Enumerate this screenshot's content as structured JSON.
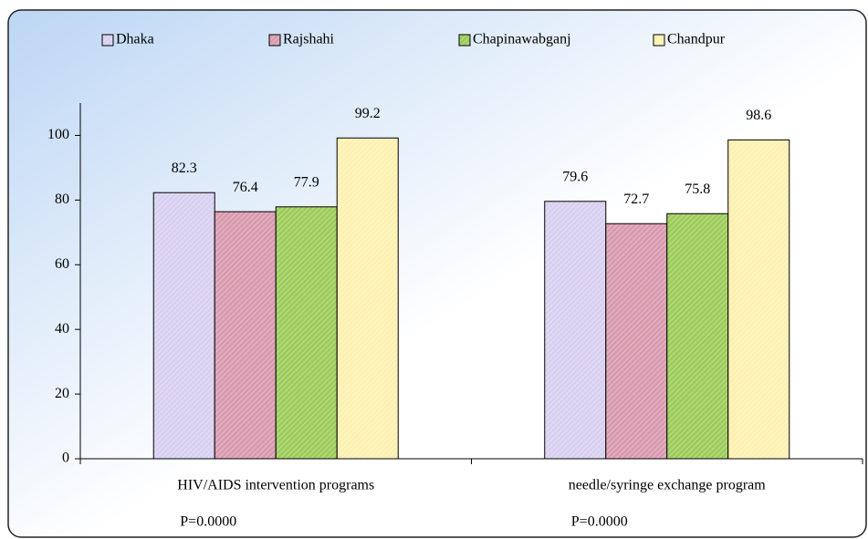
{
  "chart_data": {
    "type": "bar",
    "categories": [
      "HIV/AIDS intervention programs",
      "needle/syringe exchange program"
    ],
    "annotations": [
      "P=0.0000",
      "P=0.0000"
    ],
    "series": [
      {
        "name": "Dhaka",
        "color": "#d8d0f0",
        "values": [
          82.3,
          79.6
        ]
      },
      {
        "name": "Rajshahi",
        "color": "#d89aae",
        "values": [
          76.4,
          72.7
        ]
      },
      {
        "name": "Chapinawabganj",
        "color": "#9ccc5a",
        "values": [
          77.9,
          75.8
        ]
      },
      {
        "name": "Chandpur",
        "color": "#fdf1b0",
        "values": [
          99.2,
          98.6
        ]
      }
    ],
    "ylim": [
      0,
      110
    ],
    "yticks": [
      0,
      20,
      40,
      60,
      80,
      100
    ],
    "legend": "top",
    "grid": false
  }
}
